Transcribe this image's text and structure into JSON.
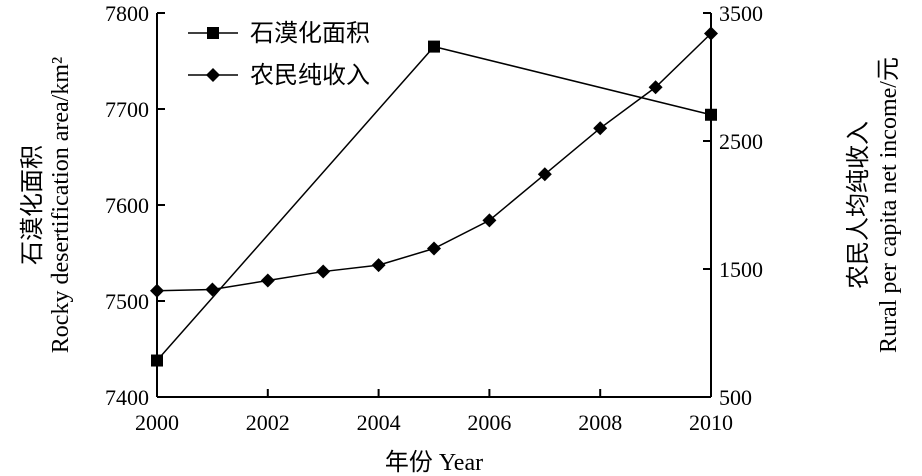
{
  "chart_data": {
    "type": "line",
    "xlabel": "年份 Year",
    "ylabel_left": "石漠化面积\nRocky desertification area/km²",
    "ylabel_left_cn": "石漠化面积",
    "ylabel_left_en": "Rocky desertification area/km²",
    "ylabel_right_cn": "农民人均纯收入",
    "ylabel_right_en": "Rural per capita net income/元",
    "xlim": [
      2000,
      2010
    ],
    "ylim_left": [
      7400,
      7800
    ],
    "ylim_right": [
      500,
      3500
    ],
    "x_ticks": [
      "2000",
      "2002",
      "2004",
      "2006",
      "2008",
      "2010"
    ],
    "y_left_ticks": [
      "7400",
      "7500",
      "7600",
      "7700",
      "7800"
    ],
    "y_right_ticks": [
      "500",
      "1500",
      "2500",
      "3500"
    ],
    "legend_position": "top-left",
    "series": [
      {
        "name": "石漠化面积",
        "axis": "left",
        "marker": "square",
        "x": [
          2000,
          2005,
          2010
        ],
        "y": [
          7438,
          7765,
          7694
        ]
      },
      {
        "name": "农民纯收入",
        "axis": "right",
        "marker": "diamond",
        "x": [
          2000,
          2001,
          2002,
          2003,
          2004,
          2005,
          2006,
          2007,
          2008,
          2009,
          2010
        ],
        "y": [
          1330,
          1340,
          1410,
          1480,
          1530,
          1660,
          1880,
          2240,
          2600,
          2920,
          3340
        ]
      }
    ]
  }
}
